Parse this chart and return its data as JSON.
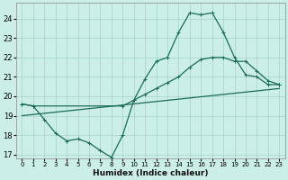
{
  "xlabel": "Humidex (Indice chaleur)",
  "bg_color": "#cceee8",
  "grid_color": "#aad8d0",
  "line_color": "#1a6b5a",
  "xlim": [
    -0.5,
    23.5
  ],
  "ylim": [
    16.8,
    24.8
  ],
  "yticks": [
    17,
    18,
    19,
    20,
    21,
    22,
    23,
    24
  ],
  "xticks": [
    0,
    1,
    2,
    3,
    4,
    5,
    6,
    7,
    8,
    9,
    10,
    11,
    12,
    13,
    14,
    15,
    16,
    17,
    18,
    19,
    20,
    21,
    22,
    23
  ],
  "line1_x": [
    0,
    1,
    2,
    3,
    4,
    5,
    6,
    7,
    8,
    9,
    10,
    11,
    12,
    13,
    14,
    15,
    16,
    17,
    18,
    19,
    20,
    21,
    22,
    23
  ],
  "line1_y": [
    19.6,
    19.5,
    18.8,
    18.1,
    17.7,
    17.8,
    17.6,
    17.2,
    16.85,
    18.0,
    19.8,
    20.9,
    21.8,
    22.0,
    23.3,
    24.3,
    24.2,
    24.3,
    23.3,
    22.0,
    21.1,
    21.0,
    20.6,
    20.6
  ],
  "line2_x": [
    0,
    1,
    9,
    10,
    11,
    12,
    13,
    14,
    15,
    16,
    17,
    18,
    19,
    20,
    21,
    22,
    23
  ],
  "line2_y": [
    19.6,
    19.5,
    19.5,
    19.8,
    20.1,
    20.4,
    20.7,
    21.0,
    21.5,
    21.9,
    22.0,
    22.0,
    21.8,
    21.8,
    21.3,
    20.8,
    20.6
  ],
  "line3_x": [
    0,
    23
  ],
  "line3_y": [
    19.0,
    20.4
  ]
}
